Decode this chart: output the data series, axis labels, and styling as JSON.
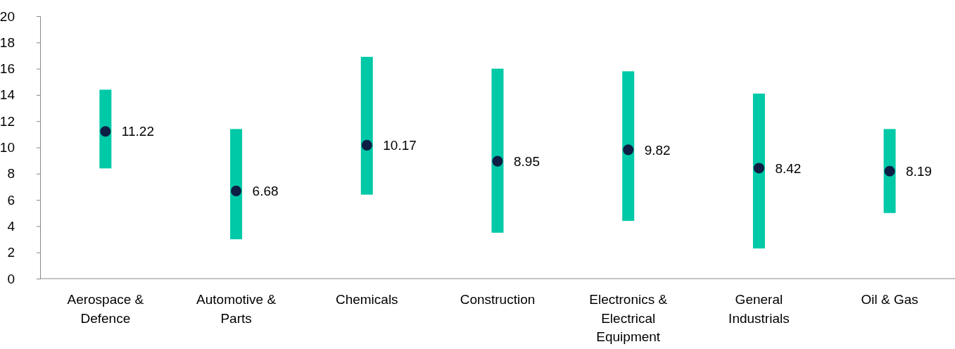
{
  "chart_data": {
    "type": "bar",
    "categories": [
      "Aerospace & Defence",
      "Automotive & Parts",
      "Chemicals",
      "Construction",
      "Electronics & Electrical Equipment",
      "General Industrials",
      "Oil & Gas"
    ],
    "ylim": [
      0,
      20
    ],
    "yticks": [
      0,
      2,
      4,
      6,
      8,
      10,
      12,
      14,
      16,
      18,
      20
    ],
    "grid": false,
    "series": [
      {
        "color": "#00c9a7",
        "base": [
          8.4,
          3.0,
          6.4,
          3.5,
          4.4,
          2.3,
          5.0
        ],
        "values": [
          6.0,
          8.4,
          10.5,
          12.5,
          11.4,
          11.8,
          6.4
        ]
      },
      {
        "type": "scatter",
        "color": "#0d1f45",
        "x": [
          "Aerospace & Defence",
          "Automotive & Parts",
          "Chemicals",
          "Construction",
          "Electronics & Electrical Equipment",
          "General Industrials",
          "Oil & Gas"
        ],
        "values": [
          11.22,
          6.68,
          10.17,
          8.95,
          9.82,
          8.42,
          8.19
        ],
        "value_labels": [
          "11.22",
          "6.68",
          "10.17",
          "8.95",
          "9.82",
          "8.42",
          "8.19"
        ],
        "marker": "circle"
      }
    ]
  }
}
